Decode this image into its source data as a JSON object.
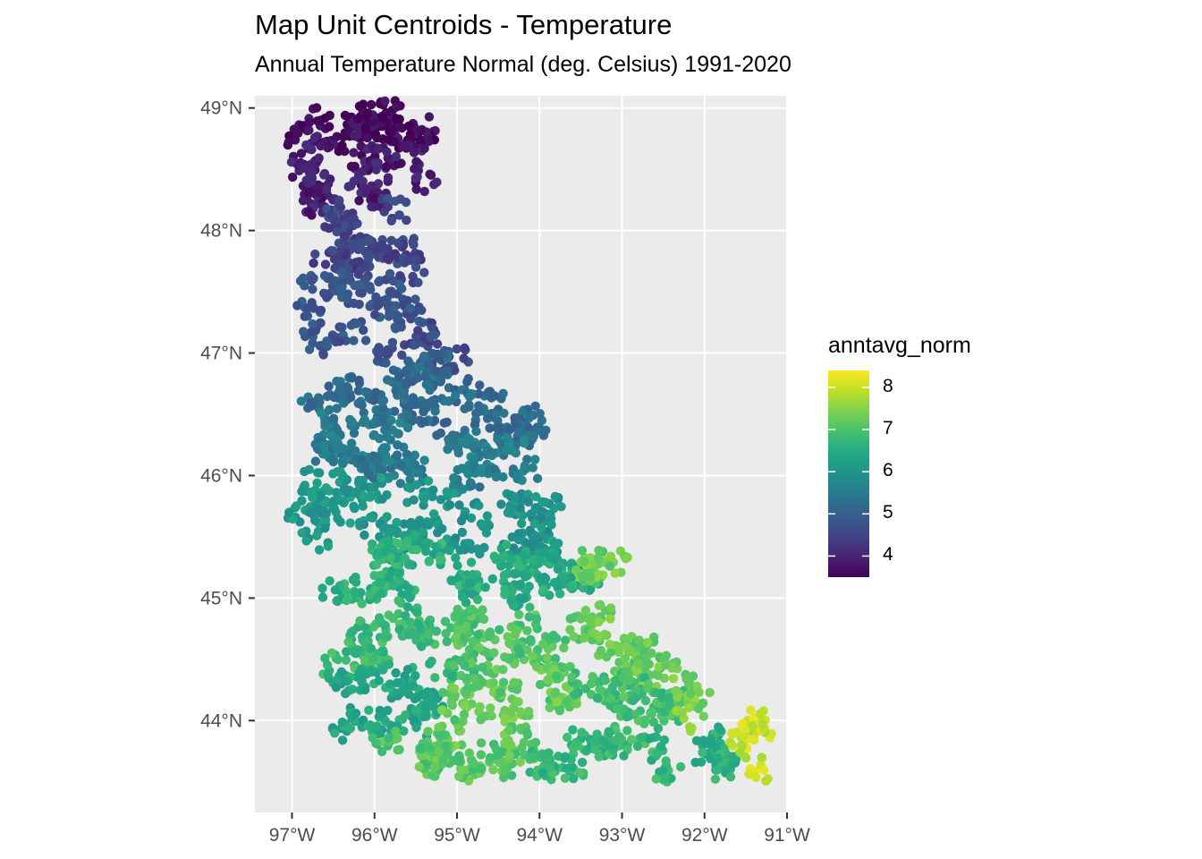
{
  "chart_data": {
    "type": "scatter",
    "title": "Map Unit Centroids - Temperature",
    "subtitle": "Annual Temperature Normal (deg. Celsius) 1991-2020",
    "xlabel": "",
    "ylabel": "",
    "x_ticks": [
      -97,
      -96,
      -95,
      -94,
      -93,
      -92,
      -91
    ],
    "x_tick_labels": [
      "97°W",
      "96°W",
      "95°W",
      "94°W",
      "93°W",
      "92°W",
      "91°W"
    ],
    "y_ticks": [
      44,
      45,
      46,
      47,
      48,
      49
    ],
    "y_tick_labels": [
      "44°N",
      "45°N",
      "46°N",
      "47°N",
      "48°N",
      "49°N"
    ],
    "xlim": [
      -97.45,
      -91.0
    ],
    "ylim": [
      43.25,
      49.1
    ],
    "grid": true,
    "legend": {
      "title": "anntavg_norm",
      "position": "right",
      "range": [
        3.5,
        8.4
      ],
      "ticks": [
        4,
        5,
        6,
        7,
        8
      ],
      "tick_labels": [
        "4",
        "5",
        "6",
        "7",
        "8"
      ],
      "colormap": "viridis"
    },
    "colors": {
      "panel_background": "#ebebeb",
      "grid": "#ffffff",
      "viridis": [
        "#440154",
        "#482475",
        "#414487",
        "#355f8d",
        "#2a788e",
        "#21918c",
        "#22a884",
        "#44bf70",
        "#7ad151",
        "#bddf26",
        "#fde725"
      ]
    },
    "series": [
      {
        "regions": [
          {
            "lon_range": [
              -97.0,
              -95.25
            ],
            "lat_range": [
              48.7,
              49.0
            ],
            "value": 3.6,
            "n": 160
          },
          {
            "lon_range": [
              -97.05,
              -95.2
            ],
            "lat_range": [
              48.2,
              48.7
            ],
            "value": 3.9,
            "n": 180
          },
          {
            "lon_range": [
              -96.95,
              -95.4
            ],
            "lat_range": [
              47.65,
              48.2
            ],
            "value": 4.5,
            "n": 170
          },
          {
            "lon_range": [
              -96.85,
              -95.5
            ],
            "lat_range": [
              47.0,
              47.65
            ],
            "value": 4.8,
            "n": 160
          },
          {
            "lon_range": [
              -95.5,
              -94.7
            ],
            "lat_range": [
              46.9,
              47.2
            ],
            "value": 4.6,
            "n": 50
          },
          {
            "lon_range": [
              -96.85,
              -95.2
            ],
            "lat_range": [
              46.5,
              47.0
            ],
            "value": 5.2,
            "n": 170
          },
          {
            "lon_range": [
              -95.1,
              -93.8
            ],
            "lat_range": [
              46.3,
              46.75
            ],
            "value": 5.2,
            "n": 120
          },
          {
            "lon_range": [
              -96.7,
              -95.0
            ],
            "lat_range": [
              46.0,
              46.5
            ],
            "value": 5.5,
            "n": 170
          },
          {
            "lon_range": [
              -95.0,
              -94.0
            ],
            "lat_range": [
              45.9,
              46.3
            ],
            "value": 5.6,
            "n": 100
          },
          {
            "lon_range": [
              -96.95,
              -95.2
            ],
            "lat_range": [
              45.45,
              46.0
            ],
            "value": 6.1,
            "n": 190
          },
          {
            "lon_range": [
              -95.2,
              -93.8
            ],
            "lat_range": [
              45.4,
              45.9
            ],
            "value": 6.0,
            "n": 140
          },
          {
            "lon_range": [
              -96.5,
              -94.8
            ],
            "lat_range": [
              44.9,
              45.45
            ],
            "value": 6.6,
            "n": 170
          },
          {
            "lon_range": [
              -94.8,
              -93.4
            ],
            "lat_range": [
              44.9,
              45.4
            ],
            "value": 6.5,
            "n": 150
          },
          {
            "lon_range": [
              -93.5,
              -93.0
            ],
            "lat_range": [
              44.8,
              45.3
            ],
            "value": 7.3,
            "n": 60
          },
          {
            "lon_range": [
              -96.5,
              -95.0
            ],
            "lat_range": [
              44.4,
              44.9
            ],
            "value": 6.8,
            "n": 160
          },
          {
            "lon_range": [
              -95.0,
              -93.5
            ],
            "lat_range": [
              44.4,
              44.9
            ],
            "value": 7.0,
            "n": 150
          },
          {
            "lon_range": [
              -93.5,
              -92.4
            ],
            "lat_range": [
              44.35,
              44.8
            ],
            "value": 7.2,
            "n": 120
          },
          {
            "lon_range": [
              -96.5,
              -95.3
            ],
            "lat_range": [
              43.85,
              44.4
            ],
            "value": 6.4,
            "n": 150
          },
          {
            "lon_range": [
              -95.3,
              -93.6
            ],
            "lat_range": [
              43.85,
              44.4
            ],
            "value": 7.2,
            "n": 170
          },
          {
            "lon_range": [
              -93.6,
              -92.3
            ],
            "lat_range": [
              43.85,
              44.35
            ],
            "value": 6.9,
            "n": 140
          },
          {
            "lon_range": [
              -92.3,
              -91.9
            ],
            "lat_range": [
              44.0,
              44.3
            ],
            "value": 7.4,
            "n": 30
          },
          {
            "lon_range": [
              -95.9,
              -94.0
            ],
            "lat_range": [
              43.55,
              43.85
            ],
            "value": 7.1,
            "n": 120
          },
          {
            "lon_range": [
              -94.0,
              -92.3
            ],
            "lat_range": [
              43.55,
              43.85
            ],
            "value": 6.7,
            "n": 120
          },
          {
            "lon_range": [
              -92.3,
              -91.6
            ],
            "lat_range": [
              43.55,
              44.0
            ],
            "value": 6.6,
            "n": 60
          },
          {
            "lon_range": [
              -91.75,
              -91.3
            ],
            "lat_range": [
              43.6,
              44.1
            ],
            "value": 8.0,
            "n": 50
          }
        ]
      }
    ]
  }
}
